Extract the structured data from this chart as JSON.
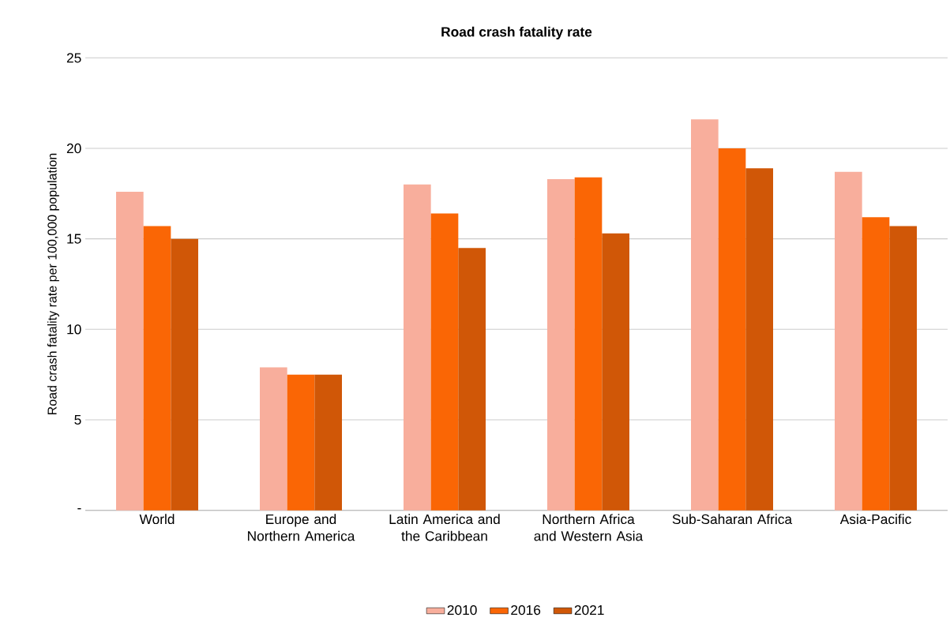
{
  "chart_data": {
    "type": "bar",
    "title": "Road crash fatality rate",
    "ylabel": "Road crash fatality rate per 100,000 population",
    "categories": [
      "World",
      "Europe and Northern America",
      "Latin America and the Caribbean",
      "Northern Africa and Western Asia",
      "Sub-Saharan Africa",
      "Asia-Pacific"
    ],
    "series": [
      {
        "name": "2010",
        "color": "#f8ae9c",
        "values": [
          17.6,
          7.9,
          18.0,
          18.3,
          21.6,
          18.7
        ]
      },
      {
        "name": "2016",
        "color": "#fa6605",
        "values": [
          15.7,
          7.5,
          16.4,
          18.4,
          20.0,
          16.2
        ]
      },
      {
        "name": "2021",
        "color": "#d05707",
        "values": [
          15.0,
          7.5,
          14.5,
          15.3,
          18.9,
          15.7
        ]
      }
    ],
    "ylim": [
      0,
      25
    ],
    "yticks": [
      {
        "value": 0,
        "label": "-"
      },
      5,
      10,
      15,
      20,
      25
    ],
    "grid": "y",
    "legend": "bottom"
  }
}
